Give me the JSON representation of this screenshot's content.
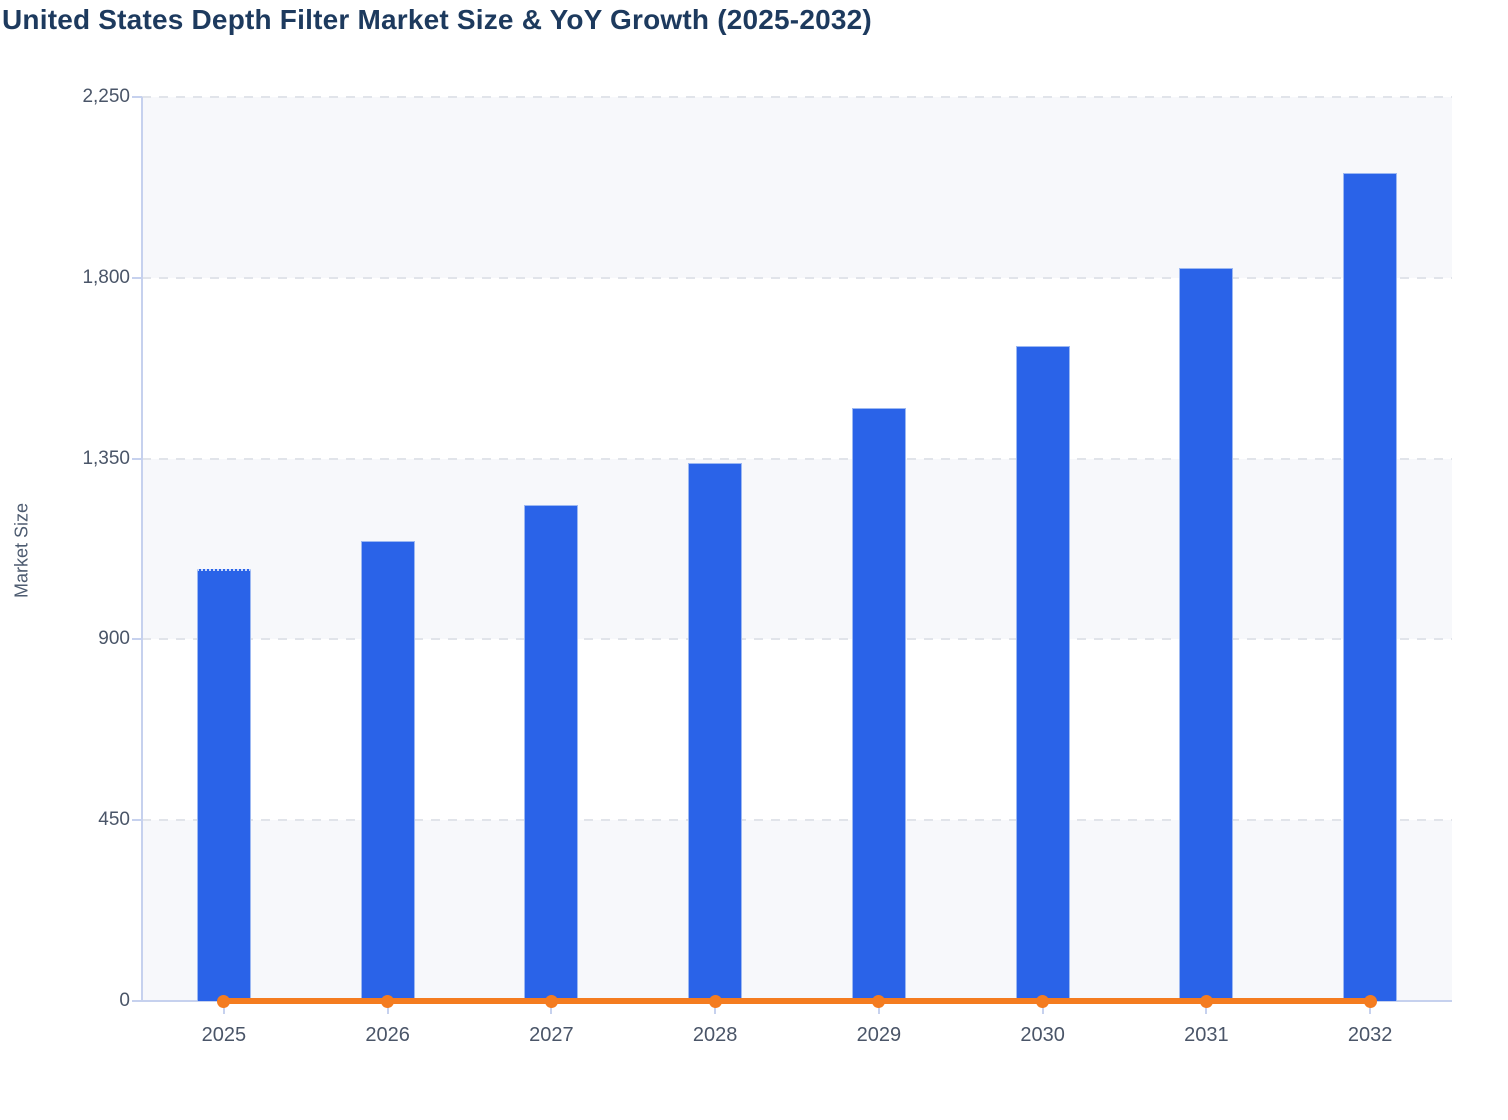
{
  "title": "United States Depth Filter Market Size & YoY Growth (2025-2032)",
  "colors": {
    "title": "#1d3a5e",
    "bar": "#2a63e8",
    "bar_border": "#9cb8f2",
    "line": "#f47c20",
    "band": "#f7f8fb",
    "grid": "#e1e4ea",
    "axis": "#c6d1ee",
    "tick_label": "#4a5568",
    "axis_title": "#4d5b70"
  },
  "chart_data": {
    "type": "bar",
    "title": "United States Depth Filter Market Size & YoY Growth (2025-2032)",
    "categories": [
      "2025",
      "2026",
      "2027",
      "2028",
      "2029",
      "2030",
      "2031",
      "2032"
    ],
    "series": [
      {
        "name": "Market Size",
        "type": "bar",
        "values": [
          1075,
          1145,
          1235,
          1340,
          1475,
          1630,
          1825,
          2060
        ]
      },
      {
        "name": "YoY Growth",
        "type": "line",
        "values": [
          0,
          0,
          0,
          0,
          0,
          0,
          0,
          0
        ],
        "note": "orange line with round markers drawn flat at ~0 on the Market Size axis; growth percentages are not labeled in the image"
      }
    ],
    "xlabel": "",
    "ylabel": "Market Size",
    "ylim": [
      0,
      2250
    ],
    "ytick_labels": [
      "0",
      "450",
      "900",
      "1,350",
      "1,800",
      "2,250"
    ],
    "ytick_values": [
      0,
      450,
      900,
      1350,
      1800,
      2250
    ],
    "grid": "dashed horizontal gridlines, alternating light background bands",
    "legend": "none"
  }
}
